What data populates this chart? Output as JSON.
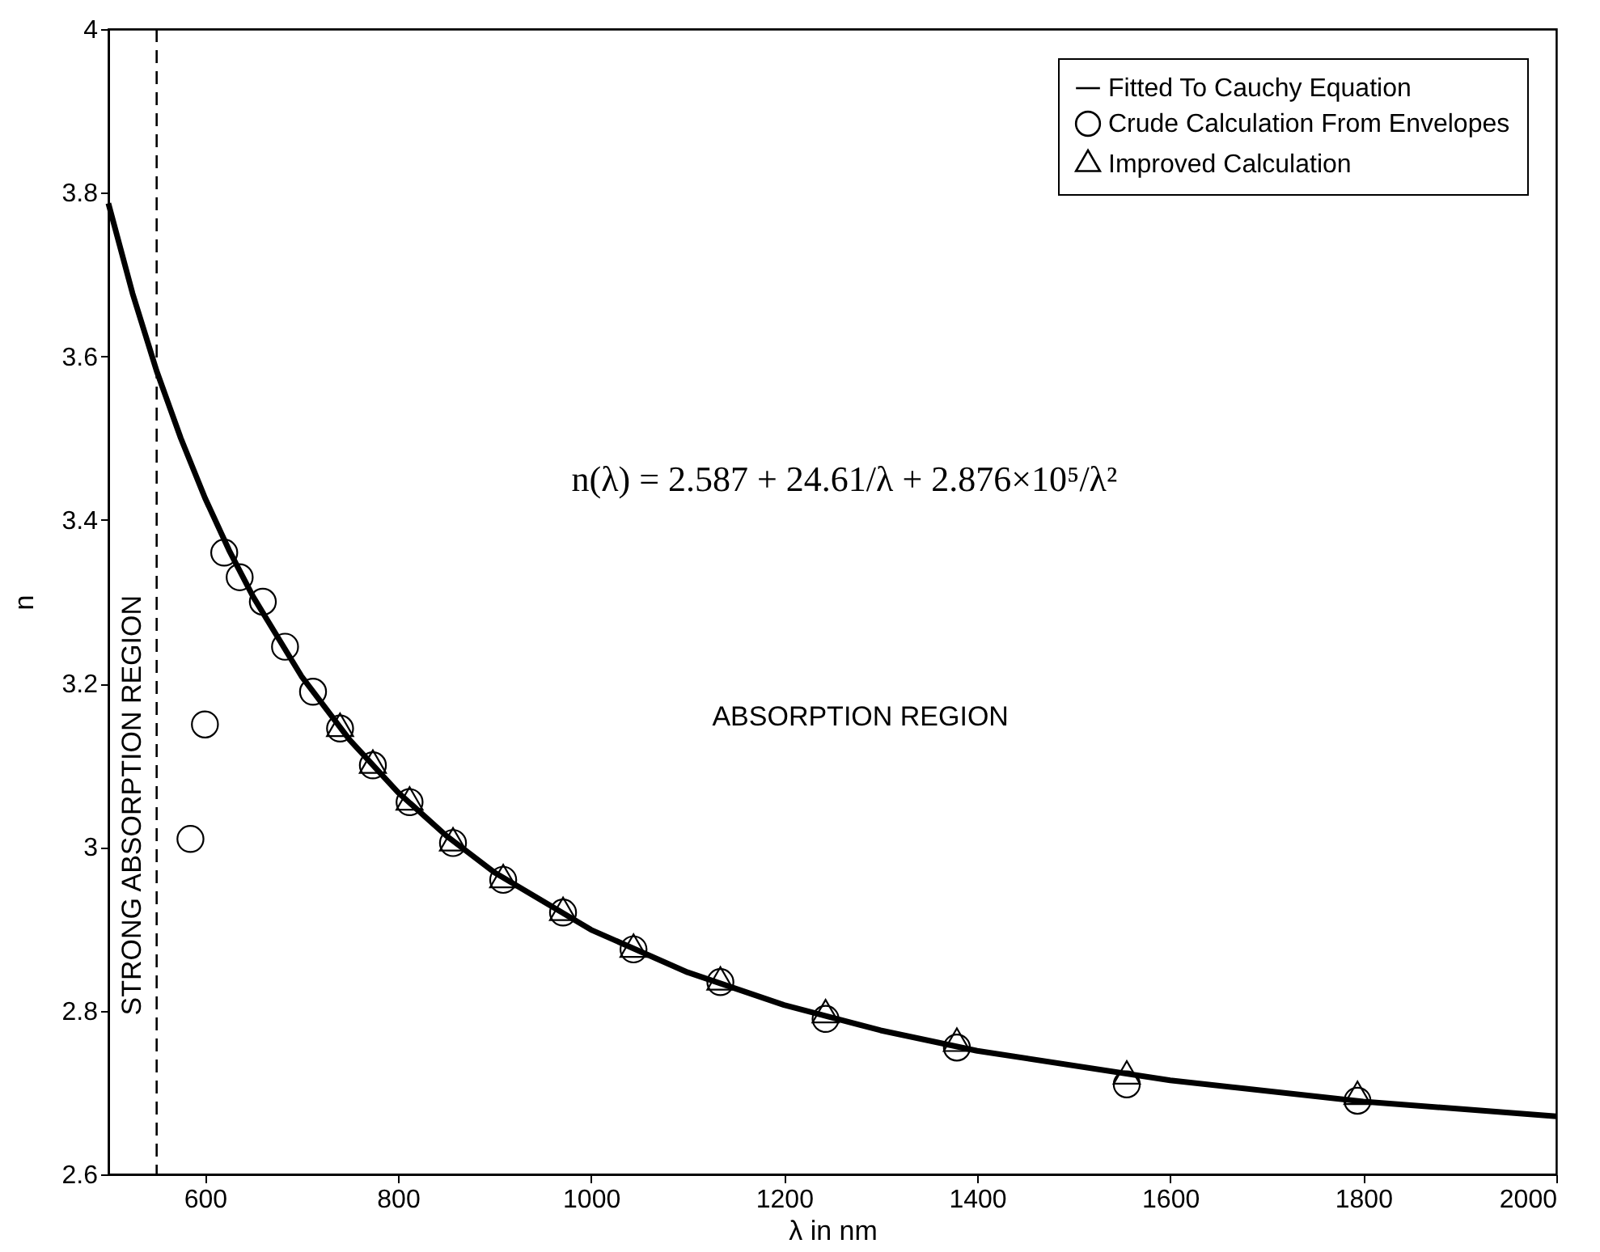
{
  "chart_data": {
    "type": "scatter",
    "xlabel": "λ in nm",
    "ylabel": "n",
    "xlim": [
      500,
      2000
    ],
    "xticks": [
      600,
      800,
      1000,
      1200,
      1400,
      1600,
      1800,
      2000
    ],
    "ylim": [
      2.6,
      4
    ],
    "yticks": [
      2.6,
      2.8,
      3,
      3.2,
      3.4,
      3.6,
      3.8,
      4
    ],
    "grid": false,
    "legend": "top right",
    "series": [
      {
        "name": "Fitted To Cauchy Equation",
        "type": "line",
        "color": "#000000",
        "marker": "none",
        "line_style": "solid",
        "x": [
          500,
          525,
          550,
          575,
          600,
          625,
          650,
          700,
          750,
          800,
          850,
          900,
          1000,
          1100,
          1200,
          1300,
          1400,
          1600,
          1800,
          2000
        ],
        "values": [
          3.787,
          3.677,
          3.582,
          3.5,
          3.427,
          3.363,
          3.306,
          3.209,
          3.131,
          3.067,
          3.014,
          2.969,
          2.899,
          2.847,
          2.807,
          2.776,
          2.751,
          2.715,
          2.689,
          2.671
        ]
      },
      {
        "name": "Crude Calculation From Envelopes",
        "color": "#000000",
        "marker": "circle",
        "x": [
          585,
          600,
          620,
          636,
          660,
          683,
          712,
          740,
          774,
          812,
          857,
          909,
          971,
          1044,
          1134,
          1243,
          1379,
          1555,
          1794
        ],
        "values": [
          3.01,
          3.15,
          3.36,
          3.33,
          3.3,
          3.245,
          3.19,
          3.145,
          3.1,
          3.055,
          3.005,
          2.96,
          2.92,
          2.875,
          2.835,
          2.79,
          2.755,
          2.71,
          2.69
        ]
      },
      {
        "name": "Improved Calculation",
        "color": "#000000",
        "marker": "triangle",
        "x": [
          740,
          774,
          812,
          857,
          909,
          971,
          1044,
          1134,
          1243,
          1379,
          1555,
          1794
        ],
        "values": [
          3.145,
          3.1,
          3.055,
          3.005,
          2.96,
          2.92,
          2.875,
          2.835,
          2.795,
          2.76,
          2.72,
          2.695
        ]
      }
    ],
    "ref_lines": [
      {
        "axis": "x",
        "value": 550,
        "label": "STRONG ABSORPTION REGION",
        "color": "#000000",
        "line_style": "dashed"
      }
    ],
    "annotations": [
      "n(λ) = 2.587 + 24.61/λ + 2.876×10⁵/λ²",
      "ABSORPTION REGION"
    ]
  }
}
